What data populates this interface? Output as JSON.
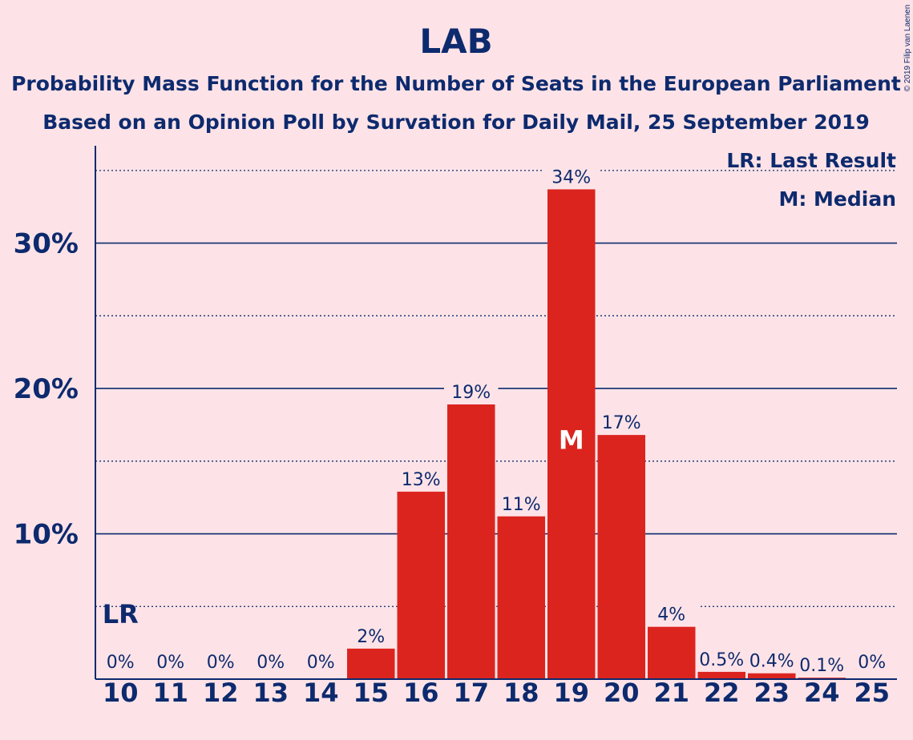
{
  "header": {
    "title": "LAB",
    "subtitle1": "Probability Mass Function for the Number of Seats in the European Parliament",
    "subtitle2": "Based on an Opinion Poll by Survation for Daily Mail, 25 September 2019",
    "copyright": "© 2019 Filip van Laenen"
  },
  "legend": {
    "last_result": "LR: Last Result",
    "median": "M: Median"
  },
  "colors": {
    "background": "#fde3e7",
    "bar": "#dc241f",
    "text": "#0d2a6e"
  },
  "chart_data": {
    "type": "bar",
    "categories": [
      "10",
      "11",
      "12",
      "13",
      "14",
      "15",
      "16",
      "17",
      "18",
      "19",
      "20",
      "21",
      "22",
      "23",
      "24",
      "25"
    ],
    "values": [
      0,
      0,
      0,
      0,
      0,
      2.1,
      12.9,
      18.9,
      11.2,
      33.7,
      16.8,
      3.6,
      0.5,
      0.4,
      0.1,
      0
    ],
    "data_labels": [
      "0%",
      "0%",
      "0%",
      "0%",
      "0%",
      "2%",
      "13%",
      "19%",
      "11%",
      "34%",
      "17%",
      "4%",
      "0.5%",
      "0.4%",
      "0.1%",
      "0%"
    ],
    "y_ticks": [
      10,
      20,
      30
    ],
    "y_tick_labels": [
      "10%",
      "20%",
      "30%"
    ],
    "ylim": [
      0,
      36.7
    ],
    "grid": "solid at 10% steps, dotted at 5% steps",
    "last_result_category": "10",
    "last_result_marker": "LR",
    "median_category": "19",
    "median_marker": "M",
    "legend_position": "top-right"
  }
}
